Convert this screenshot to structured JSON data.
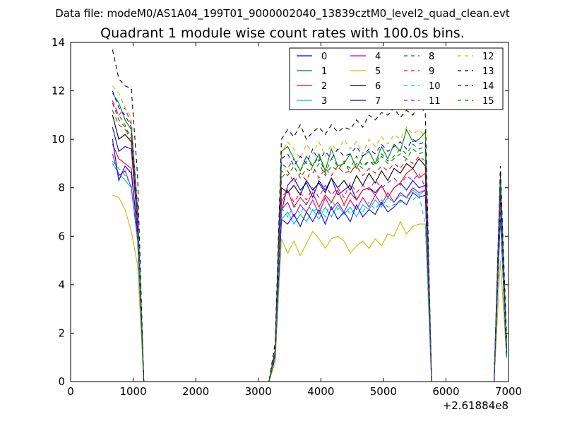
{
  "page": {
    "supertitle": "Data file: modeM0/AS1A04_199T01_9000002040_13839cztM0_level2_quad_clean.evt",
    "title": "Quadrant 1 module wise count rates with 100.0s bins."
  },
  "chart_data": {
    "type": "line",
    "title": "Quadrant 1 module wise count rates with 100.0s bins.",
    "xlabel": "",
    "ylabel": "",
    "xlim": [
      0,
      7000
    ],
    "ylim": [
      0,
      14
    ],
    "x_offset_label": "+2.61884e8",
    "x_ticks": [
      0,
      1000,
      2000,
      3000,
      4000,
      5000,
      6000,
      7000
    ],
    "x_tick_labels": [
      "0",
      "1000",
      "2000",
      "3000",
      "4000",
      "5000",
      "6000",
      "7000"
    ],
    "y_ticks": [
      0,
      2,
      4,
      6,
      8,
      10,
      12,
      14
    ],
    "y_tick_labels": [
      "0",
      "2",
      "4",
      "6",
      "8",
      "10",
      "12",
      "14"
    ],
    "grid": false,
    "legend_position": "top-right",
    "legend_columns": 4,
    "x": [
      670,
      770,
      870,
      970,
      1070,
      1170,
      1270,
      1370,
      1470,
      1570,
      1670,
      1770,
      1870,
      1970,
      2070,
      2170,
      2270,
      2370,
      2470,
      2570,
      2670,
      2770,
      2870,
      2970,
      3070,
      3170,
      3270,
      3370,
      3470,
      3570,
      3670,
      3770,
      3870,
      3970,
      4070,
      4170,
      4270,
      4370,
      4470,
      4570,
      4670,
      4770,
      4870,
      4970,
      5070,
      5170,
      5270,
      5370,
      5470,
      5570,
      5670,
      5770,
      5870,
      5970,
      6070,
      6170,
      6270,
      6370,
      6470,
      6570,
      6670,
      6770,
      6870,
      6970
    ],
    "series": [
      {
        "name": "0",
        "color": "#0000ff",
        "dash": "solid",
        "values": [
          10.5,
          9.5,
          9.7,
          9.6,
          6.5,
          0.0,
          0.0,
          0.0,
          0.0,
          0.0,
          0.0,
          0.0,
          0.0,
          0.0,
          0.0,
          0.0,
          0.0,
          0.0,
          0.0,
          0.0,
          0.0,
          0.0,
          0.0,
          0.0,
          0.0,
          0.0,
          1.2,
          7.0,
          8.1,
          8.4,
          7.9,
          8.2,
          7.6,
          8.3,
          7.9,
          8.4,
          7.7,
          7.9,
          8.1,
          7.5,
          7.9,
          8.0,
          7.8,
          8.1,
          7.6,
          8.0,
          8.2,
          7.9,
          8.3,
          8.0,
          8.1,
          0.0,
          0.0,
          0.0,
          0.0,
          0.0,
          0.0,
          0.0,
          0.0,
          0.0,
          0.0,
          0.0,
          7.8,
          1.2
        ]
      },
      {
        "name": "1",
        "color": "#008000",
        "dash": "solid",
        "values": [
          11.9,
          11.5,
          10.8,
          10.4,
          7.0,
          0.0,
          0.0,
          0.0,
          0.0,
          0.0,
          0.0,
          0.0,
          0.0,
          0.0,
          0.0,
          0.0,
          0.0,
          0.0,
          0.0,
          0.0,
          0.0,
          0.0,
          0.0,
          0.0,
          0.0,
          0.0,
          1.3,
          9.5,
          9.7,
          9.2,
          8.7,
          9.3,
          8.9,
          9.4,
          8.7,
          9.6,
          8.9,
          9.0,
          9.4,
          8.8,
          9.3,
          9.5,
          9.0,
          9.7,
          9.2,
          9.8,
          9.5,
          10.4,
          9.9,
          10.0,
          10.3,
          0.0,
          0.0,
          0.0,
          0.0,
          0.0,
          0.0,
          0.0,
          0.0,
          0.0,
          0.0,
          0.0,
          8.4,
          1.5
        ]
      },
      {
        "name": "2",
        "color": "#ff0000",
        "dash": "solid",
        "values": [
          9.8,
          9.2,
          9.0,
          8.8,
          6.0,
          0.0,
          0.0,
          0.0,
          0.0,
          0.0,
          0.0,
          0.0,
          0.0,
          0.0,
          0.0,
          0.0,
          0.0,
          0.0,
          0.0,
          0.0,
          0.0,
          0.0,
          0.0,
          0.0,
          0.0,
          0.0,
          1.0,
          7.4,
          7.9,
          7.2,
          7.6,
          7.3,
          7.8,
          7.2,
          7.7,
          7.4,
          7.9,
          7.3,
          7.8,
          7.5,
          7.9,
          8.0,
          7.7,
          8.1,
          7.6,
          8.0,
          8.2,
          8.6,
          8.8,
          8.4,
          8.6,
          0.0,
          0.0,
          0.0,
          0.0,
          0.0,
          0.0,
          0.0,
          0.0,
          0.0,
          0.0,
          0.0,
          7.2,
          1.0
        ]
      },
      {
        "name": "3",
        "color": "#00bfbf",
        "dash": "solid",
        "values": [
          9.0,
          8.6,
          8.3,
          8.0,
          5.8,
          0.0,
          0.0,
          0.0,
          0.0,
          0.0,
          0.0,
          0.0,
          0.0,
          0.0,
          0.0,
          0.0,
          0.0,
          0.0,
          0.0,
          0.0,
          0.0,
          0.0,
          0.0,
          0.0,
          0.0,
          0.0,
          1.0,
          6.7,
          7.0,
          6.5,
          6.9,
          6.6,
          7.1,
          6.7,
          7.2,
          6.8,
          7.3,
          6.9,
          7.2,
          6.8,
          7.3,
          7.1,
          7.5,
          7.2,
          7.6,
          7.4,
          7.7,
          7.6,
          7.9,
          7.7,
          7.9,
          0.0,
          0.0,
          0.0,
          0.0,
          0.0,
          0.0,
          0.0,
          0.0,
          0.0,
          0.0,
          0.0,
          6.8,
          1.0
        ]
      },
      {
        "name": "4",
        "color": "#bf00bf",
        "dash": "solid",
        "values": [
          9.4,
          8.5,
          8.7,
          8.0,
          5.9,
          0.0,
          0.0,
          0.0,
          0.0,
          0.0,
          0.0,
          0.0,
          0.0,
          0.0,
          0.0,
          0.0,
          0.0,
          0.0,
          0.0,
          0.0,
          0.0,
          0.0,
          0.0,
          0.0,
          0.0,
          0.0,
          1.0,
          7.1,
          7.4,
          6.8,
          7.3,
          7.0,
          7.5,
          6.9,
          7.6,
          7.1,
          7.4,
          7.0,
          7.5,
          7.1,
          7.6,
          7.2,
          7.7,
          7.3,
          7.8,
          7.4,
          7.8,
          7.6,
          8.0,
          7.8,
          7.9,
          0.0,
          0.0,
          0.0,
          0.0,
          0.0,
          0.0,
          0.0,
          0.0,
          0.0,
          0.0,
          0.0,
          7.0,
          1.0
        ]
      },
      {
        "name": "5",
        "color": "#bfbf00",
        "dash": "solid",
        "values": [
          7.7,
          7.6,
          7.1,
          6.2,
          4.8,
          0.0,
          0.0,
          0.0,
          0.0,
          0.0,
          0.0,
          0.0,
          0.0,
          0.0,
          0.0,
          0.0,
          0.0,
          0.0,
          0.0,
          0.0,
          0.0,
          0.0,
          0.0,
          0.0,
          0.0,
          0.0,
          0.8,
          5.9,
          5.3,
          5.8,
          5.2,
          5.7,
          6.2,
          5.9,
          5.5,
          5.9,
          6.0,
          5.8,
          5.3,
          5.6,
          5.8,
          5.5,
          5.9,
          5.6,
          6.1,
          6.0,
          6.6,
          6.1,
          6.4,
          6.5,
          6.5,
          0.0,
          0.0,
          0.0,
          0.0,
          0.0,
          0.0,
          0.0,
          0.0,
          0.0,
          0.0,
          0.0,
          5.0,
          1.0
        ]
      },
      {
        "name": "6",
        "color": "#000000",
        "dash": "solid",
        "values": [
          11.0,
          10.0,
          10.2,
          9.9,
          6.8,
          0.0,
          0.0,
          0.0,
          0.0,
          0.0,
          0.0,
          0.0,
          0.0,
          0.0,
          0.0,
          0.0,
          0.0,
          0.0,
          0.0,
          0.0,
          0.0,
          0.0,
          0.0,
          0.0,
          0.0,
          0.0,
          1.1,
          8.0,
          7.8,
          8.1,
          7.7,
          8.3,
          7.9,
          8.2,
          7.8,
          8.4,
          8.0,
          8.3,
          7.9,
          8.5,
          8.1,
          8.6,
          8.2,
          8.7,
          8.3,
          8.8,
          8.6,
          9.0,
          8.8,
          9.2,
          8.9,
          0.0,
          0.0,
          0.0,
          0.0,
          0.0,
          0.0,
          0.0,
          0.0,
          0.0,
          0.0,
          0.0,
          7.6,
          1.2
        ]
      },
      {
        "name": "7",
        "color": "#0000ff",
        "dash": "solid",
        "values": [
          10.0,
          8.3,
          8.9,
          8.6,
          6.2,
          0.0,
          0.0,
          0.0,
          0.0,
          0.0,
          0.0,
          0.0,
          0.0,
          0.0,
          0.0,
          0.0,
          0.0,
          0.0,
          0.0,
          0.0,
          0.0,
          0.0,
          0.0,
          0.0,
          0.0,
          0.0,
          1.0,
          6.7,
          6.5,
          6.9,
          6.4,
          7.0,
          6.6,
          7.1,
          6.5,
          7.2,
          6.7,
          7.0,
          6.6,
          7.3,
          6.8,
          7.1,
          6.9,
          7.4,
          7.0,
          7.2,
          7.5,
          7.3,
          7.8,
          7.6,
          7.7,
          0.0,
          0.0,
          0.0,
          0.0,
          0.0,
          0.0,
          0.0,
          0.0,
          0.0,
          0.0,
          0.0,
          6.9,
          1.0
        ]
      },
      {
        "name": "8",
        "color": "#008000",
        "dash": "dashed",
        "values": [
          11.5,
          11.0,
          10.6,
          10.0,
          6.9,
          0.0,
          0.0,
          0.0,
          0.0,
          0.0,
          0.0,
          0.0,
          0.0,
          0.0,
          0.0,
          0.0,
          0.0,
          0.0,
          0.0,
          0.0,
          0.0,
          0.0,
          0.0,
          0.0,
          0.0,
          0.0,
          1.3,
          9.0,
          8.8,
          9.2,
          8.7,
          9.1,
          8.9,
          9.3,
          8.6,
          9.2,
          8.9,
          9.0,
          8.8,
          9.3,
          8.9,
          9.1,
          9.0,
          9.4,
          9.1,
          9.3,
          9.6,
          9.4,
          9.8,
          9.6,
          9.7,
          0.0,
          0.0,
          0.0,
          0.0,
          0.0,
          0.0,
          0.0,
          0.0,
          0.0,
          0.0,
          0.0,
          8.6,
          1.5
        ]
      },
      {
        "name": "9",
        "color": "#ff0000",
        "dash": "dashed",
        "values": [
          11.5,
          10.8,
          10.5,
          9.8,
          6.6,
          0.0,
          0.0,
          0.0,
          0.0,
          0.0,
          0.0,
          0.0,
          0.0,
          0.0,
          0.0,
          0.0,
          0.0,
          0.0,
          0.0,
          0.0,
          0.0,
          0.0,
          0.0,
          0.0,
          0.0,
          0.0,
          1.2,
          8.4,
          8.7,
          8.2,
          8.6,
          8.3,
          8.9,
          8.4,
          8.8,
          8.5,
          8.9,
          8.6,
          8.7,
          8.9,
          8.5,
          8.8,
          8.6,
          8.9,
          8.7,
          9.0,
          8.8,
          9.2,
          9.0,
          9.3,
          9.1,
          0.0,
          0.0,
          0.0,
          0.0,
          0.0,
          0.0,
          0.0,
          0.0,
          0.0,
          0.0,
          0.0,
          8.3,
          1.3
        ]
      },
      {
        "name": "10",
        "color": "#00bfbf",
        "dash": "dashed",
        "values": [
          9.1,
          8.8,
          8.5,
          8.1,
          5.9,
          0.0,
          0.0,
          0.0,
          0.0,
          0.0,
          0.0,
          0.0,
          0.0,
          0.0,
          0.0,
          0.0,
          0.0,
          0.0,
          0.0,
          0.0,
          0.0,
          0.0,
          0.0,
          0.0,
          0.0,
          0.0,
          1.0,
          7.2,
          6.8,
          7.3,
          6.9,
          7.4,
          7.0,
          7.2,
          6.8,
          7.5,
          7.1,
          7.3,
          6.9,
          7.2,
          7.0,
          7.4,
          7.1,
          7.5,
          7.2,
          7.3,
          7.4,
          7.6,
          7.5,
          7.7,
          6.5,
          0.0,
          0.0,
          0.0,
          0.0,
          0.0,
          0.0,
          0.0,
          0.0,
          0.0,
          0.0,
          0.0,
          7.1,
          1.0
        ]
      },
      {
        "name": "11",
        "color": "#bf00bf",
        "dash": "dashed",
        "values": [
          11.6,
          11.0,
          11.3,
          10.6,
          7.1,
          0.0,
          0.0,
          0.0,
          0.0,
          0.0,
          0.0,
          0.0,
          0.0,
          0.0,
          0.0,
          0.0,
          0.0,
          0.0,
          0.0,
          0.0,
          0.0,
          0.0,
          0.0,
          0.0,
          0.0,
          0.0,
          1.1,
          7.6,
          7.9,
          7.4,
          7.8,
          7.5,
          8.0,
          7.6,
          8.1,
          7.7,
          8.0,
          7.6,
          8.2,
          7.8,
          8.1,
          7.9,
          8.3,
          8.0,
          8.2,
          8.4,
          8.1,
          8.5,
          8.3,
          8.6,
          8.0,
          0.0,
          0.0,
          0.0,
          0.0,
          0.0,
          0.0,
          0.0,
          0.0,
          0.0,
          0.0,
          0.0,
          7.5,
          1.2
        ]
      },
      {
        "name": "12",
        "color": "#bfbf00",
        "dash": "dashed",
        "values": [
          12.2,
          11.9,
          11.3,
          10.9,
          7.3,
          0.0,
          0.0,
          0.0,
          0.0,
          0.0,
          0.0,
          0.0,
          0.0,
          0.0,
          0.0,
          0.0,
          0.0,
          0.0,
          0.0,
          0.0,
          0.0,
          0.0,
          0.0,
          0.0,
          0.0,
          0.0,
          1.4,
          9.4,
          9.9,
          9.6,
          9.2,
          9.8,
          9.4,
          9.9,
          9.3,
          9.8,
          9.5,
          10.0,
          9.6,
          9.9,
          9.4,
          10.0,
          9.7,
          10.1,
          9.8,
          10.2,
          10.0,
          10.5,
          10.2,
          10.4,
          10.1,
          0.0,
          0.0,
          0.0,
          0.0,
          0.0,
          0.0,
          0.0,
          0.0,
          0.0,
          0.0,
          0.0,
          8.7,
          1.6
        ]
      },
      {
        "name": "13",
        "color": "#000000",
        "dash": "dashed",
        "values": [
          13.7,
          12.5,
          12.2,
          12.1,
          8.5,
          0.0,
          0.0,
          0.0,
          0.0,
          0.0,
          0.0,
          0.0,
          0.0,
          0.0,
          0.0,
          0.0,
          0.0,
          0.0,
          0.0,
          0.0,
          0.0,
          0.0,
          0.0,
          0.0,
          0.0,
          0.0,
          1.6,
          10.0,
          10.4,
          10.1,
          10.6,
          10.0,
          10.3,
          10.5,
          10.2,
          10.6,
          10.3,
          10.5,
          10.4,
          10.8,
          10.5,
          11.0,
          10.8,
          11.1,
          11.0,
          11.3,
          10.9,
          11.2,
          11.0,
          11.4,
          11.1,
          0.0,
          0.0,
          0.0,
          0.0,
          0.0,
          0.0,
          0.0,
          0.0,
          0.0,
          0.0,
          0.0,
          8.9,
          1.8
        ]
      },
      {
        "name": "14",
        "color": "#0000ff",
        "dash": "dashed",
        "values": [
          12.0,
          11.3,
          11.0,
          10.5,
          7.2,
          0.0,
          0.0,
          0.0,
          0.0,
          0.0,
          0.0,
          0.0,
          0.0,
          0.0,
          0.0,
          0.0,
          0.0,
          0.0,
          0.0,
          0.0,
          0.0,
          0.0,
          0.0,
          0.0,
          0.0,
          0.0,
          1.3,
          9.2,
          9.4,
          8.9,
          9.3,
          9.0,
          9.6,
          9.1,
          9.5,
          9.2,
          9.6,
          9.3,
          9.4,
          9.7,
          9.3,
          9.6,
          9.4,
          9.8,
          9.5,
          9.7,
          9.9,
          9.6,
          10.0,
          9.8,
          9.9,
          0.0,
          0.0,
          0.0,
          0.0,
          0.0,
          0.0,
          0.0,
          0.0,
          0.0,
          0.0,
          0.0,
          8.5,
          1.4
        ]
      },
      {
        "name": "15",
        "color": "#008000",
        "dash": "dashed",
        "values": [
          11.2,
          10.6,
          10.4,
          10.2,
          6.9,
          0.0,
          0.0,
          0.0,
          0.0,
          0.0,
          0.0,
          0.0,
          0.0,
          0.0,
          0.0,
          0.0,
          0.0,
          0.0,
          0.0,
          0.0,
          0.0,
          0.0,
          0.0,
          0.0,
          0.0,
          0.0,
          1.2,
          8.7,
          8.5,
          8.9,
          8.4,
          8.8,
          8.6,
          9.0,
          8.5,
          8.9,
          8.7,
          9.1,
          8.6,
          9.0,
          8.8,
          9.1,
          8.9,
          9.3,
          9.0,
          9.2,
          9.4,
          9.2,
          9.6,
          9.4,
          9.5,
          0.0,
          0.0,
          0.0,
          0.0,
          0.0,
          0.0,
          0.0,
          0.0,
          0.0,
          0.0,
          0.0,
          8.2,
          1.3
        ]
      }
    ]
  }
}
